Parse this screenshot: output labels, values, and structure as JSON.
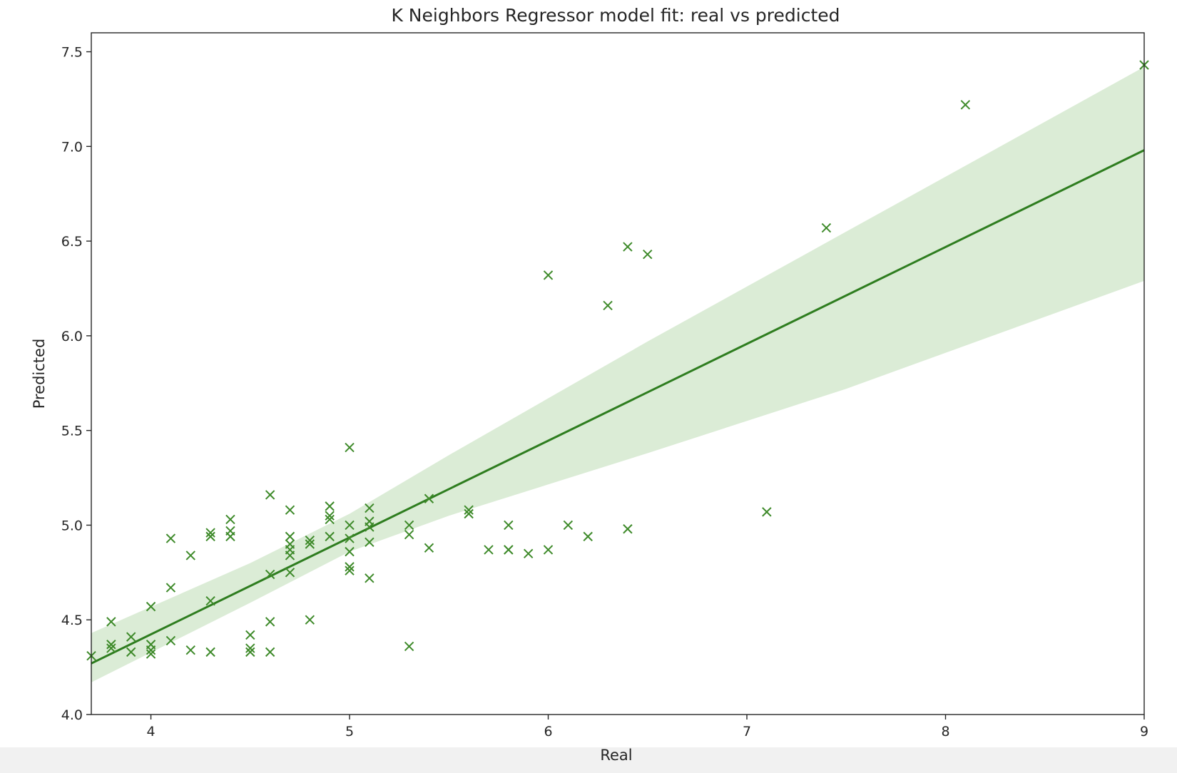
{
  "chart_data": {
    "type": "scatter",
    "title": "K Neighbors Regressor model fit: real vs predicted",
    "xlabel": "Real",
    "ylabel": "Predicted",
    "xlim": [
      3.7,
      9.0
    ],
    "ylim": [
      4.0,
      7.6
    ],
    "xticks": [
      4,
      5,
      6,
      7,
      8,
      9
    ],
    "yticks": [
      4.0,
      4.5,
      5.0,
      5.5,
      6.0,
      6.5,
      7.0,
      7.5
    ],
    "grid": false,
    "marker": "x",
    "colors": {
      "points": "#3e8a2a",
      "regression_line": "#2e7d1f",
      "confidence_band": "#c7e2c0",
      "axes": "#262626"
    },
    "regression": {
      "x_range": [
        3.7,
        9.0
      ],
      "line_y": [
        4.27,
        6.98
      ],
      "band": {
        "x": [
          3.7,
          4.5,
          5.0,
          5.5,
          6.5,
          7.5,
          9.0
        ],
        "lower": [
          4.17,
          4.59,
          4.86,
          5.05,
          5.38,
          5.72,
          6.29
        ],
        "upper": [
          4.43,
          4.8,
          5.06,
          5.37,
          5.97,
          6.55,
          7.42
        ]
      }
    },
    "points": [
      [
        3.7,
        4.31
      ],
      [
        3.8,
        4.49
      ],
      [
        3.8,
        4.37
      ],
      [
        3.8,
        4.35
      ],
      [
        3.9,
        4.41
      ],
      [
        3.9,
        4.33
      ],
      [
        4.0,
        4.57
      ],
      [
        4.0,
        4.37
      ],
      [
        4.0,
        4.34
      ],
      [
        4.0,
        4.32
      ],
      [
        4.1,
        4.93
      ],
      [
        4.1,
        4.67
      ],
      [
        4.1,
        4.39
      ],
      [
        4.2,
        4.84
      ],
      [
        4.2,
        4.34
      ],
      [
        4.3,
        4.96
      ],
      [
        4.3,
        4.94
      ],
      [
        4.3,
        4.6
      ],
      [
        4.3,
        4.33
      ],
      [
        4.4,
        5.03
      ],
      [
        4.4,
        4.97
      ],
      [
        4.4,
        4.94
      ],
      [
        4.5,
        4.42
      ],
      [
        4.5,
        4.35
      ],
      [
        4.5,
        4.33
      ],
      [
        4.6,
        5.16
      ],
      [
        4.6,
        4.74
      ],
      [
        4.6,
        4.49
      ],
      [
        4.6,
        4.33
      ],
      [
        4.7,
        5.08
      ],
      [
        4.7,
        4.94
      ],
      [
        4.7,
        4.9
      ],
      [
        4.7,
        4.87
      ],
      [
        4.7,
        4.84
      ],
      [
        4.7,
        4.75
      ],
      [
        4.8,
        4.92
      ],
      [
        4.8,
        4.9
      ],
      [
        4.8,
        4.5
      ],
      [
        4.9,
        5.1
      ],
      [
        4.9,
        5.05
      ],
      [
        4.9,
        5.03
      ],
      [
        4.9,
        4.94
      ],
      [
        5.0,
        5.41
      ],
      [
        5.0,
        5.0
      ],
      [
        5.0,
        4.93
      ],
      [
        5.0,
        4.86
      ],
      [
        5.0,
        4.78
      ],
      [
        5.0,
        4.76
      ],
      [
        5.1,
        5.09
      ],
      [
        5.1,
        5.02
      ],
      [
        5.1,
        4.99
      ],
      [
        5.1,
        4.91
      ],
      [
        5.1,
        4.72
      ],
      [
        5.3,
        5.0
      ],
      [
        5.3,
        4.95
      ],
      [
        5.3,
        4.36
      ],
      [
        5.4,
        5.14
      ],
      [
        5.4,
        4.88
      ],
      [
        5.6,
        5.08
      ],
      [
        5.6,
        5.06
      ],
      [
        5.7,
        4.87
      ],
      [
        5.8,
        5.0
      ],
      [
        5.8,
        4.87
      ],
      [
        5.8,
        4.87
      ],
      [
        5.9,
        4.85
      ],
      [
        6.0,
        6.32
      ],
      [
        6.0,
        4.87
      ],
      [
        6.1,
        5.0
      ],
      [
        6.2,
        4.94
      ],
      [
        6.3,
        6.16
      ],
      [
        6.4,
        6.47
      ],
      [
        6.4,
        4.98
      ],
      [
        6.5,
        6.43
      ],
      [
        7.1,
        5.07
      ],
      [
        7.4,
        6.57
      ],
      [
        8.1,
        7.22
      ],
      [
        9.0,
        7.43
      ]
    ]
  }
}
